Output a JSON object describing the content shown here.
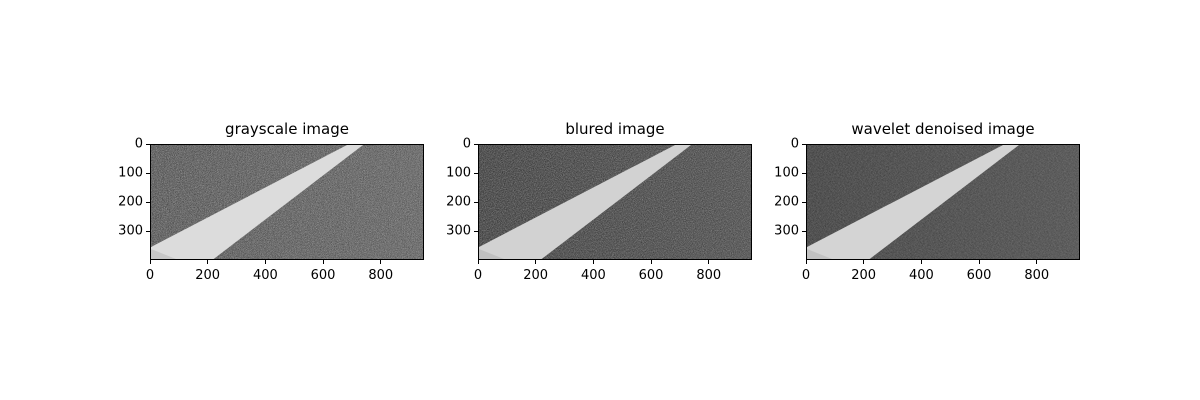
{
  "figure": {
    "panels": [
      {
        "title": "grayscale image",
        "variant": "sharp"
      },
      {
        "title": "blured image",
        "variant": "blur"
      },
      {
        "title": "wavelet denoised image",
        "variant": "denoise"
      }
    ],
    "x_ticks": [
      "0",
      "200",
      "400",
      "600",
      "800"
    ],
    "y_ticks": [
      "0",
      "100",
      "200",
      "300"
    ],
    "image_extent": {
      "width": 950,
      "height": 400
    },
    "colors": {
      "asphalt": "#3a3a3a",
      "lane_marking": "#d8d8d8"
    }
  }
}
